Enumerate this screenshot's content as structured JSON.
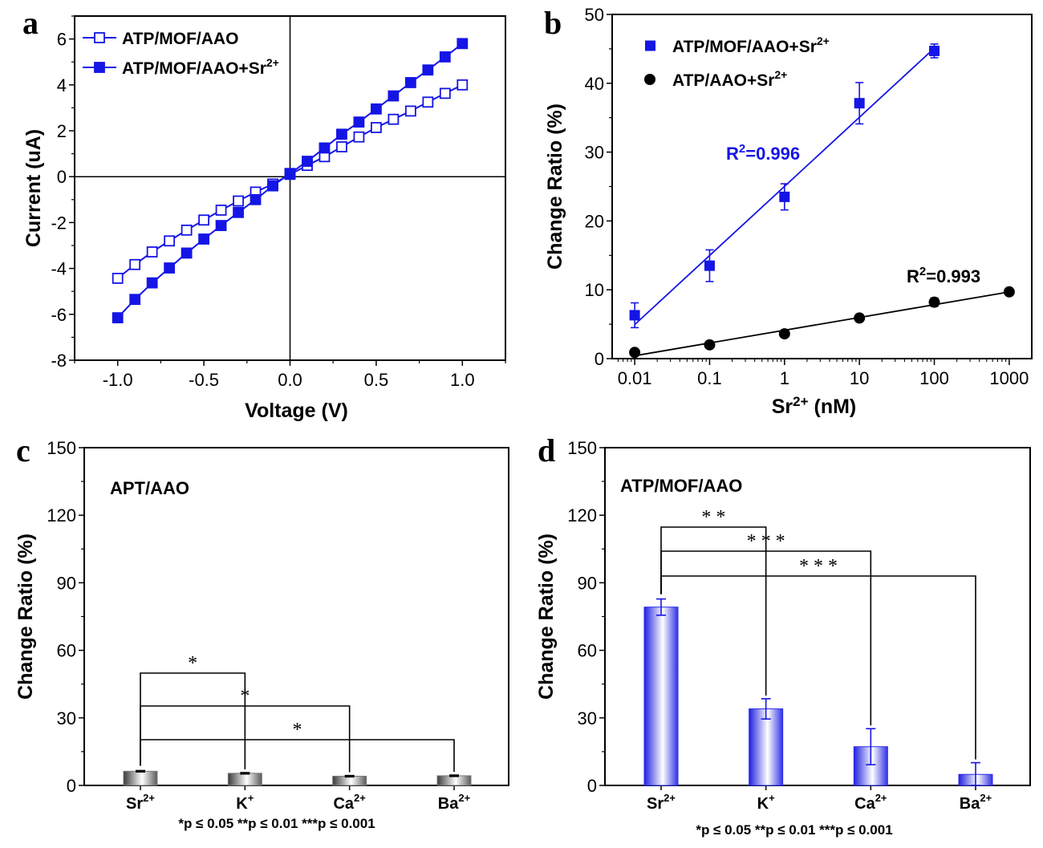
{
  "chart_data": [
    {
      "panel": "a",
      "type": "line",
      "xlabel": "Voltage (V)",
      "ylabel": "Current (uA)",
      "xlim": [
        -1.25,
        1.25
      ],
      "ylim": [
        -8,
        7
      ],
      "xticks": [
        "-1.0",
        "-0.5",
        "0.0",
        "0.5",
        "1.0"
      ],
      "yticks": [
        "-8",
        "-6",
        "-4",
        "-2",
        "0",
        "2",
        "4",
        "6"
      ],
      "x": [
        -1.0,
        -0.9,
        -0.8,
        -0.7,
        -0.6,
        -0.5,
        -0.4,
        -0.3,
        -0.2,
        -0.1,
        0.0,
        0.1,
        0.2,
        0.3,
        0.4,
        0.5,
        0.6,
        0.7,
        0.8,
        0.9,
        1.0
      ],
      "series": [
        {
          "name": "ATP/MOF/AAO",
          "marker": "open-square",
          "color": "#1515e6",
          "values": [
            -4.43,
            -3.83,
            -3.28,
            -2.8,
            -2.33,
            -1.89,
            -1.46,
            -1.06,
            -0.67,
            -0.32,
            0.1,
            0.49,
            0.87,
            1.3,
            1.73,
            2.14,
            2.5,
            2.86,
            3.25,
            3.63,
            4.0
          ]
        },
        {
          "name_main": "ATP/MOF/AAO+Sr",
          "name_sup": "2+",
          "marker": "filled-square",
          "color": "#1515e6",
          "values": [
            -6.15,
            -5.35,
            -4.63,
            -3.98,
            -3.33,
            -2.72,
            -2.13,
            -1.56,
            -1.0,
            -0.4,
            0.14,
            0.67,
            1.25,
            1.85,
            2.38,
            2.95,
            3.52,
            4.1,
            4.65,
            5.22,
            5.8
          ]
        }
      ]
    },
    {
      "panel": "b",
      "type": "scatter",
      "xscale": "log",
      "xlabel_main": "Sr",
      "xlabel_sup": "2+",
      "xlabel_tail": " (nM)",
      "ylabel": "Change Ratio (%)",
      "ylim": [
        0,
        50
      ],
      "xticks": [
        "0.01",
        "0.1",
        "1",
        "10",
        "100",
        "1000"
      ],
      "yticks": [
        "0",
        "10",
        "20",
        "30",
        "40",
        "50"
      ],
      "series": [
        {
          "name_main": "ATP/MOF/AAO+Sr",
          "name_sup": "2+",
          "marker": "filled-square",
          "color": "#1515e6",
          "x": [
            0.01,
            0.1,
            1,
            10,
            100
          ],
          "values": [
            6.3,
            13.5,
            23.5,
            37.1,
            44.7
          ],
          "errors": [
            1.8,
            2.3,
            1.9,
            3.0,
            1.0
          ],
          "fit_label_main": "R",
          "fit_label_sup": "2",
          "fit_label_tail": "=0.996"
        },
        {
          "name_main": "ATP/AAO+Sr",
          "name_sup": "2+",
          "marker": "filled-circle",
          "color": "#000000",
          "x": [
            0.01,
            0.1,
            1,
            10,
            100,
            1000
          ],
          "values": [
            0.9,
            2.0,
            3.6,
            5.9,
            8.2,
            9.7
          ],
          "errors": [
            0.2,
            0.3,
            0.3,
            0.3,
            0.6,
            0.3
          ],
          "fit_label_main": "R",
          "fit_label_sup": "2",
          "fit_label_tail": "=0.993"
        }
      ]
    },
    {
      "panel": "c",
      "type": "bar",
      "title": "APT/AAO",
      "ylabel": "Change Ratio (%)",
      "ylim": [
        0,
        150
      ],
      "yticks": [
        "0",
        "30",
        "60",
        "90",
        "120",
        "150"
      ],
      "categories": [
        {
          "main": "Sr",
          "sup": "2+"
        },
        {
          "main": "K",
          "sup": "+"
        },
        {
          "main": "Ca",
          "sup": "2+"
        },
        {
          "main": "Ba",
          "sup": "2+"
        }
      ],
      "values": [
        6.3,
        5.4,
        4.1,
        4.3
      ],
      "errors": [
        0.3,
        0.3,
        0.3,
        0.3
      ],
      "bar_color": "#7a7a7a",
      "significance": [
        {
          "to": 1,
          "label": "*"
        },
        {
          "to": 2,
          "label": "*"
        },
        {
          "to": 3,
          "label": "*"
        }
      ],
      "note": "*p ≤ 0.05 **p ≤ 0.01 ***p ≤ 0.001"
    },
    {
      "panel": "d",
      "type": "bar",
      "title": "ATP/MOF/AAO",
      "ylabel": "Change Ratio (%)",
      "ylim": [
        0,
        150
      ],
      "yticks": [
        "0",
        "30",
        "60",
        "90",
        "120",
        "150"
      ],
      "categories": [
        {
          "main": "Sr",
          "sup": "2+"
        },
        {
          "main": "K",
          "sup": "+"
        },
        {
          "main": "Ca",
          "sup": "2+"
        },
        {
          "main": "Ba",
          "sup": "2+"
        }
      ],
      "values": [
        79.2,
        34.0,
        17.2,
        4.9
      ],
      "errors": [
        3.6,
        4.5,
        8.0,
        5.2
      ],
      "bar_color": "#2a2ae8",
      "significance": [
        {
          "to": 1,
          "label": "**"
        },
        {
          "to": 2,
          "label": "***"
        },
        {
          "to": 3,
          "label": "***"
        }
      ],
      "note": "*p ≤ 0.05 **p ≤ 0.01 ***p ≤ 0.001"
    }
  ],
  "colors": {
    "blue": "#1515e6",
    "black": "#000000"
  }
}
